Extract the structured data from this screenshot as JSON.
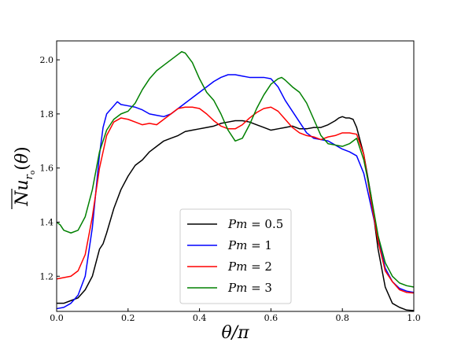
{
  "chart_data": {
    "type": "line",
    "xlabel": "θ/π",
    "ylabel": "Nu_{r_o}(θ)",
    "xlim": [
      0.0,
      1.0
    ],
    "ylim": [
      1.07,
      2.07
    ],
    "grid": false,
    "legend_position": "bottom-center",
    "x_ticks": [
      "0.0",
      "0.2",
      "0.4",
      "0.6",
      "0.8",
      "1.0"
    ],
    "y_ticks": [
      "1.2",
      "1.4",
      "1.6",
      "1.8",
      "2.0"
    ],
    "series": [
      {
        "name": "Pm = 0.5",
        "label_left": "Pm",
        "label_right": "= 0.5",
        "color": "#000000",
        "x": [
          0.0,
          0.02,
          0.04,
          0.06,
          0.08,
          0.1,
          0.12,
          0.13,
          0.14,
          0.16,
          0.18,
          0.2,
          0.22,
          0.24,
          0.26,
          0.28,
          0.3,
          0.32,
          0.34,
          0.36,
          0.38,
          0.4,
          0.42,
          0.44,
          0.46,
          0.48,
          0.5,
          0.52,
          0.54,
          0.56,
          0.58,
          0.6,
          0.62,
          0.64,
          0.66,
          0.68,
          0.7,
          0.72,
          0.74,
          0.76,
          0.78,
          0.79,
          0.8,
          0.81,
          0.82,
          0.83,
          0.84,
          0.86,
          0.88,
          0.89,
          0.9,
          0.92,
          0.94,
          0.96,
          0.98,
          1.0
        ],
        "y": [
          1.1,
          1.1,
          1.11,
          1.12,
          1.15,
          1.2,
          1.3,
          1.32,
          1.36,
          1.45,
          1.52,
          1.57,
          1.61,
          1.63,
          1.66,
          1.68,
          1.7,
          1.71,
          1.72,
          1.735,
          1.74,
          1.745,
          1.75,
          1.755,
          1.765,
          1.77,
          1.775,
          1.775,
          1.77,
          1.76,
          1.75,
          1.74,
          1.745,
          1.75,
          1.755,
          1.745,
          1.745,
          1.75,
          1.75,
          1.76,
          1.775,
          1.785,
          1.79,
          1.785,
          1.785,
          1.78,
          1.75,
          1.65,
          1.5,
          1.4,
          1.3,
          1.16,
          1.1,
          1.085,
          1.075,
          1.073
        ]
      },
      {
        "name": "Pm = 1",
        "label_left": "Pm",
        "label_right": "= 1",
        "color": "#0000ff",
        "x": [
          0.0,
          0.02,
          0.04,
          0.06,
          0.08,
          0.1,
          0.12,
          0.13,
          0.14,
          0.16,
          0.17,
          0.18,
          0.2,
          0.22,
          0.24,
          0.26,
          0.28,
          0.3,
          0.32,
          0.34,
          0.36,
          0.38,
          0.4,
          0.42,
          0.44,
          0.46,
          0.48,
          0.5,
          0.52,
          0.54,
          0.56,
          0.58,
          0.6,
          0.62,
          0.64,
          0.66,
          0.68,
          0.7,
          0.72,
          0.74,
          0.76,
          0.78,
          0.8,
          0.82,
          0.84,
          0.86,
          0.88,
          0.9,
          0.92,
          0.94,
          0.96,
          0.98,
          1.0
        ],
        "y": [
          1.08,
          1.085,
          1.1,
          1.13,
          1.2,
          1.38,
          1.65,
          1.75,
          1.8,
          1.83,
          1.845,
          1.835,
          1.83,
          1.825,
          1.815,
          1.8,
          1.795,
          1.79,
          1.8,
          1.82,
          1.84,
          1.86,
          1.88,
          1.9,
          1.92,
          1.935,
          1.945,
          1.945,
          1.94,
          1.935,
          1.935,
          1.935,
          1.93,
          1.9,
          1.85,
          1.81,
          1.77,
          1.73,
          1.71,
          1.705,
          1.7,
          1.685,
          1.67,
          1.66,
          1.645,
          1.58,
          1.46,
          1.34,
          1.23,
          1.18,
          1.155,
          1.145,
          1.14
        ]
      },
      {
        "name": "Pm = 2",
        "label_left": "Pm",
        "label_right": "= 2",
        "color": "#ff0000",
        "x": [
          0.0,
          0.02,
          0.04,
          0.06,
          0.08,
          0.1,
          0.12,
          0.14,
          0.16,
          0.18,
          0.2,
          0.22,
          0.24,
          0.26,
          0.28,
          0.3,
          0.32,
          0.34,
          0.36,
          0.38,
          0.4,
          0.42,
          0.44,
          0.46,
          0.48,
          0.5,
          0.52,
          0.54,
          0.56,
          0.58,
          0.6,
          0.62,
          0.64,
          0.66,
          0.68,
          0.7,
          0.72,
          0.74,
          0.76,
          0.78,
          0.8,
          0.82,
          0.84,
          0.86,
          0.88,
          0.9,
          0.92,
          0.94,
          0.96,
          0.98,
          1.0
        ],
        "y": [
          1.19,
          1.195,
          1.2,
          1.22,
          1.28,
          1.42,
          1.6,
          1.72,
          1.77,
          1.785,
          1.78,
          1.77,
          1.76,
          1.765,
          1.76,
          1.78,
          1.8,
          1.82,
          1.825,
          1.825,
          1.82,
          1.8,
          1.775,
          1.755,
          1.745,
          1.745,
          1.76,
          1.785,
          1.805,
          1.82,
          1.825,
          1.81,
          1.78,
          1.75,
          1.73,
          1.72,
          1.715,
          1.705,
          1.715,
          1.72,
          1.73,
          1.73,
          1.725,
          1.65,
          1.48,
          1.33,
          1.22,
          1.18,
          1.15,
          1.14,
          1.138
        ]
      },
      {
        "name": "Pm = 3",
        "label_left": "Pm",
        "label_right": "= 3",
        "color": "#008000",
        "x": [
          0.0,
          0.01,
          0.02,
          0.04,
          0.06,
          0.08,
          0.1,
          0.12,
          0.14,
          0.16,
          0.18,
          0.2,
          0.22,
          0.24,
          0.26,
          0.28,
          0.3,
          0.32,
          0.34,
          0.35,
          0.36,
          0.38,
          0.4,
          0.42,
          0.44,
          0.46,
          0.48,
          0.5,
          0.52,
          0.54,
          0.56,
          0.58,
          0.6,
          0.62,
          0.63,
          0.64,
          0.66,
          0.68,
          0.7,
          0.72,
          0.74,
          0.76,
          0.78,
          0.8,
          0.82,
          0.84,
          0.86,
          0.88,
          0.9,
          0.92,
          0.94,
          0.96,
          0.98,
          1.0
        ],
        "y": [
          1.4,
          1.39,
          1.37,
          1.36,
          1.37,
          1.42,
          1.52,
          1.66,
          1.74,
          1.78,
          1.8,
          1.81,
          1.84,
          1.89,
          1.93,
          1.96,
          1.98,
          2.0,
          2.02,
          2.03,
          2.025,
          1.99,
          1.93,
          1.88,
          1.85,
          1.8,
          1.74,
          1.7,
          1.71,
          1.76,
          1.82,
          1.87,
          1.91,
          1.93,
          1.935,
          1.925,
          1.9,
          1.88,
          1.84,
          1.78,
          1.72,
          1.69,
          1.685,
          1.68,
          1.69,
          1.71,
          1.63,
          1.5,
          1.35,
          1.25,
          1.2,
          1.175,
          1.165,
          1.16
        ]
      }
    ]
  }
}
